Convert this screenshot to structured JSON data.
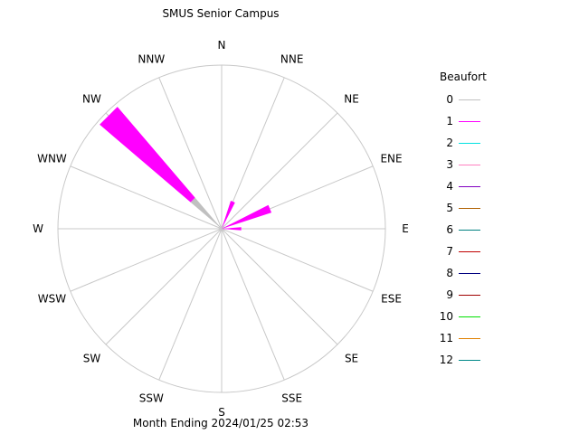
{
  "title": "SMUS Senior Campus",
  "footer": "Month Ending 2024/01/25 02:53",
  "chart_data": {
    "type": "wind-rose",
    "title": "SMUS Senior Campus",
    "directions": [
      "N",
      "NNE",
      "NE",
      "ENE",
      "E",
      "ESE",
      "SE",
      "SSE",
      "S",
      "SSW",
      "SW",
      "WSW",
      "W",
      "WNW",
      "NW",
      "NNW"
    ],
    "legend": {
      "title": "Beaufort",
      "entries": [
        {
          "label": "0",
          "color": "#c0c0c0"
        },
        {
          "label": "1",
          "color": "#ff00ff"
        },
        {
          "label": "2",
          "color": "#00e0e0"
        },
        {
          "label": "3",
          "color": "#ff80c0"
        },
        {
          "label": "4",
          "color": "#8000c0"
        },
        {
          "label": "5",
          "color": "#b06000"
        },
        {
          "label": "6",
          "color": "#008080"
        },
        {
          "label": "7",
          "color": "#c00000"
        },
        {
          "label": "8",
          "color": "#000080"
        },
        {
          "label": "9",
          "color": "#a00000"
        },
        {
          "label": "10",
          "color": "#00e000"
        },
        {
          "label": "11",
          "color": "#e08000"
        },
        {
          "label": "12",
          "color": "#008888"
        }
      ]
    },
    "series": [
      {
        "name": "0",
        "color": "#c0c0c0",
        "values": [
          0,
          0,
          0,
          0,
          0,
          0,
          0,
          0,
          0,
          0,
          0,
          0,
          0,
          0,
          0.25,
          0
        ]
      },
      {
        "name": "1",
        "color": "#ff00ff",
        "values": [
          0,
          0.18,
          0,
          0.32,
          0.12,
          0,
          0,
          0,
          0,
          0,
          0,
          0,
          0,
          0,
          0.73,
          0
        ]
      }
    ],
    "rmax": 1.0
  }
}
